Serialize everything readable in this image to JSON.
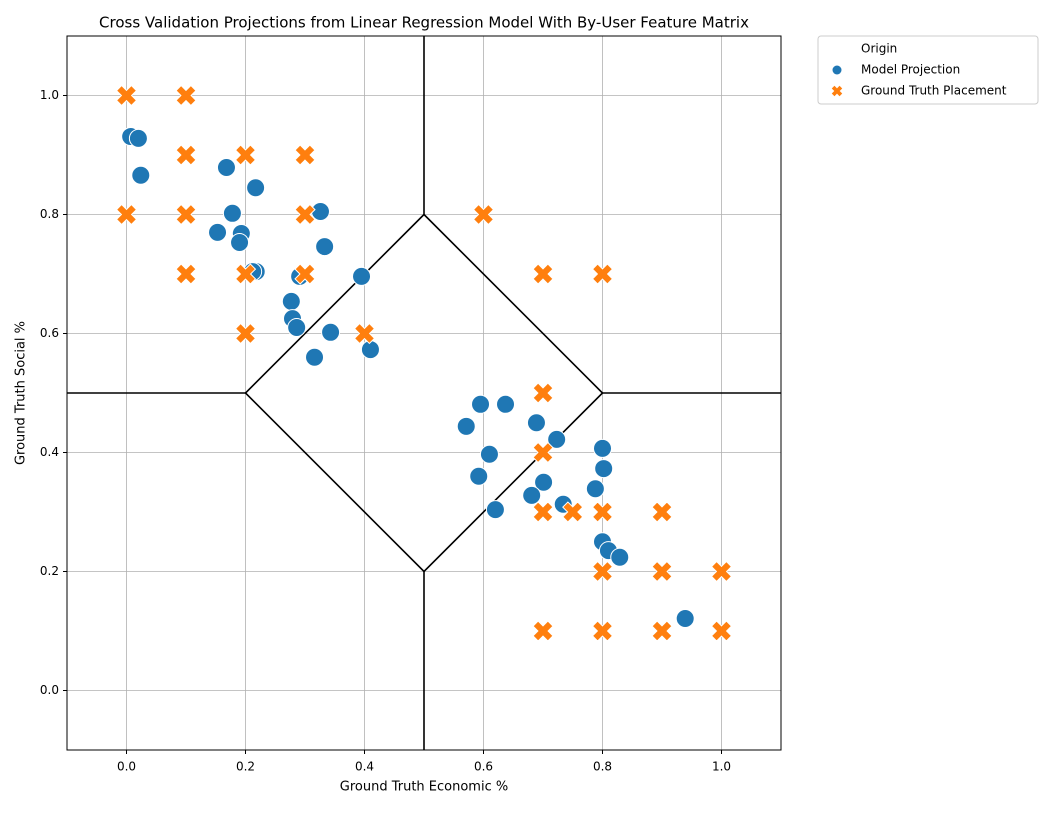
{
  "chart_data": {
    "type": "scatter",
    "title": "Cross Validation Projections from Linear Regression Model With By-User Feature Matrix",
    "x_label": "Ground Truth Economic %",
    "y_label": "Ground Truth Social %",
    "xlim": [
      -0.1,
      1.1
    ],
    "ylim": [
      -0.1,
      1.1
    ],
    "xticks": [
      {
        "value": 0,
        "label": "0.0"
      },
      0.2,
      0.4,
      0.6,
      0.8,
      {
        "value": 1,
        "label": "1.0"
      }
    ],
    "yticks": [
      {
        "value": 0,
        "label": "0.0"
      },
      0.2,
      0.4,
      0.6,
      0.8,
      {
        "value": 1,
        "label": "1.0"
      }
    ],
    "grid": true,
    "legend_title": "Origin",
    "legend_position": "outside-upper-right",
    "series": [
      {
        "name": "Model Projection",
        "color": "#1f77b4",
        "marker": "circle",
        "x": [
          0.007,
          0.02,
          0.024,
          0.168,
          0.217,
          0.178,
          0.153,
          0.193,
          0.19,
          0.218,
          0.212,
          0.326,
          0.333,
          0.291,
          0.395,
          0.277,
          0.279,
          0.286,
          0.343,
          0.41,
          0.316,
          0.595,
          0.637,
          0.571,
          0.689,
          0.723,
          0.61,
          0.8,
          0.802,
          0.592,
          0.701,
          0.681,
          0.734,
          0.788,
          0.62,
          0.8,
          0.81,
          0.829,
          0.939
        ],
        "y": [
          0.931,
          0.928,
          0.866,
          0.879,
          0.845,
          0.802,
          0.77,
          0.768,
          0.753,
          0.704,
          0.704,
          0.805,
          0.746,
          0.696,
          0.696,
          0.654,
          0.625,
          0.61,
          0.602,
          0.573,
          0.56,
          0.481,
          0.481,
          0.444,
          0.45,
          0.422,
          0.397,
          0.407,
          0.373,
          0.36,
          0.35,
          0.328,
          0.313,
          0.339,
          0.304,
          0.25,
          0.235,
          0.224,
          0.121
        ]
      },
      {
        "name": "Ground Truth Placement",
        "color": "#ff7f0e",
        "marker": "x",
        "x": [
          0,
          0.1,
          0.1,
          0.2,
          0.3,
          0,
          0.1,
          0.3,
          0.6,
          0.1,
          0.2,
          0.3,
          0.7,
          0.8,
          0.2,
          0.4,
          0.7,
          0.7,
          0.7,
          0.75,
          0.8,
          0.9,
          0.8,
          0.9,
          1.0,
          0.7,
          0.8,
          0.9,
          1.0
        ],
        "y": [
          1,
          1,
          0.9,
          0.9,
          0.9,
          0.8,
          0.8,
          0.8,
          0.8,
          0.7,
          0.7,
          0.7,
          0.7,
          0.7,
          0.6,
          0.6,
          0.5,
          0.4,
          0.3,
          0.3,
          0.3,
          0.3,
          0.2,
          0.2,
          0.2,
          0.1,
          0.1,
          0.1,
          0.1
        ]
      }
    ],
    "lines": [
      {
        "color": "#000000",
        "x": [
          0.5,
          0.5
        ],
        "y": [
          1.1,
          0.8
        ]
      },
      {
        "color": "#000000",
        "x": [
          0.5,
          0.8,
          0.5,
          0.2,
          0.5
        ],
        "y": [
          0.8,
          0.5,
          0.2,
          0.5,
          0.8
        ]
      },
      {
        "color": "#000000",
        "x": [
          -0.1,
          0.2
        ],
        "y": [
          0.5,
          0.5
        ]
      },
      {
        "color": "#000000",
        "x": [
          0.8,
          1.1
        ],
        "y": [
          0.5,
          0.5
        ]
      },
      {
        "color": "#000000",
        "x": [
          0.5,
          0.5
        ],
        "y": [
          0.2,
          -0.1
        ]
      }
    ]
  }
}
